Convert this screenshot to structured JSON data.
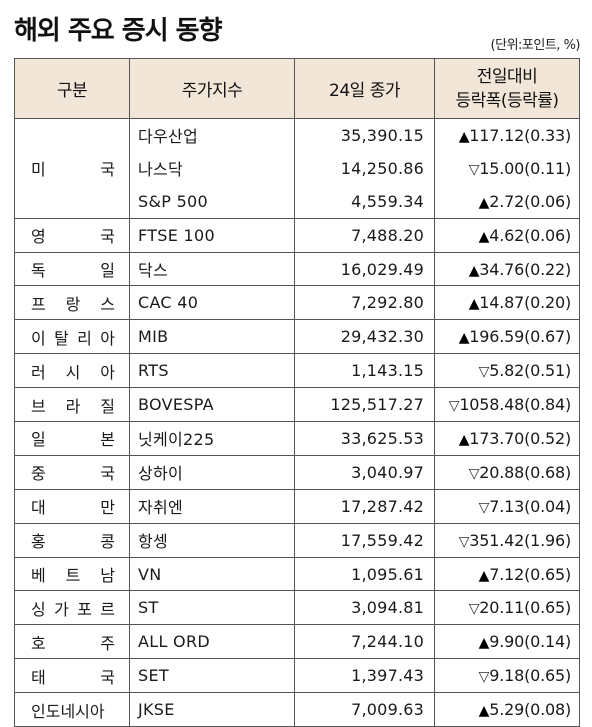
{
  "header": {
    "title": "해외 주요 증시 동향",
    "unit": "(단위:포인트, %)"
  },
  "columns": {
    "region": "구분",
    "index": "주가지수",
    "close": "24일 종가",
    "change_line1": "전일대비",
    "change_line2": "등락폭(등락률)"
  },
  "rows": [
    {
      "region": "",
      "index": "다우산업",
      "close": "35,390.15",
      "dir": "up",
      "arrow": "▲",
      "change": "117.12(0.33)"
    },
    {
      "region": "미 국",
      "index": "나스닥",
      "close": "14,250.86",
      "dir": "down",
      "arrow": "▽",
      "change": "15.00(0.11)"
    },
    {
      "region": "",
      "index": "S&P 500",
      "close": "4,559.34",
      "dir": "up",
      "arrow": "▲",
      "change": "2.72(0.06)"
    },
    {
      "region": "영 국",
      "index": "FTSE 100",
      "close": "7,488.20",
      "dir": "up",
      "arrow": "▲",
      "change": "4.62(0.06)"
    },
    {
      "region": "독 일",
      "index": "닥스",
      "close": "16,029.49",
      "dir": "up",
      "arrow": "▲",
      "change": "34.76(0.22)"
    },
    {
      "region": "프 랑 스",
      "index": "CAC 40",
      "close": "7,292.80",
      "dir": "up",
      "arrow": "▲",
      "change": "14.87(0.20)"
    },
    {
      "region": "이 탈 리 아",
      "index": "MIB",
      "close": "29,432.30",
      "dir": "up",
      "arrow": "▲",
      "change": "196.59(0.67)"
    },
    {
      "region": "러 시 아",
      "index": "RTS",
      "close": "1,143.15",
      "dir": "down",
      "arrow": "▽",
      "change": "5.82(0.51)"
    },
    {
      "region": "브 라 질",
      "index": "BOVESPA",
      "close": "125,517.27",
      "dir": "down",
      "arrow": "▽",
      "change": "1058.48(0.84)"
    },
    {
      "region": "일 본",
      "index": "닛케이225",
      "close": "33,625.53",
      "dir": "up",
      "arrow": "▲",
      "change": "173.70(0.52)"
    },
    {
      "region": "중 국",
      "index": "상하이",
      "close": "3,040.97",
      "dir": "down",
      "arrow": "▽",
      "change": "20.88(0.68)"
    },
    {
      "region": "대 만",
      "index": "자취엔",
      "close": "17,287.42",
      "dir": "down",
      "arrow": "▽",
      "change": "7.13(0.04)"
    },
    {
      "region": "홍 콩",
      "index": "항셍",
      "close": "17,559.42",
      "dir": "down",
      "arrow": "▽",
      "change": "351.42(1.96)"
    },
    {
      "region": "베 트 남",
      "index": "VN",
      "close": "1,095.61",
      "dir": "up",
      "arrow": "▲",
      "change": "7.12(0.65)"
    },
    {
      "region": "싱 가 포 르",
      "index": "ST",
      "close": "3,094.81",
      "dir": "down",
      "arrow": "▽",
      "change": "20.11(0.65)"
    },
    {
      "region": "호 주",
      "index": "ALL ORD",
      "close": "7,244.10",
      "dir": "up",
      "arrow": "▲",
      "change": "9.90(0.14)"
    },
    {
      "region": "태 국",
      "index": "SET",
      "close": "1,397.43",
      "dir": "down",
      "arrow": "▽",
      "change": "9.18(0.65)"
    },
    {
      "region": "인도네시아",
      "index": "JKSE",
      "close": "7,009.63",
      "dir": "up",
      "arrow": "▲",
      "change": "5.29(0.08)"
    }
  ]
}
